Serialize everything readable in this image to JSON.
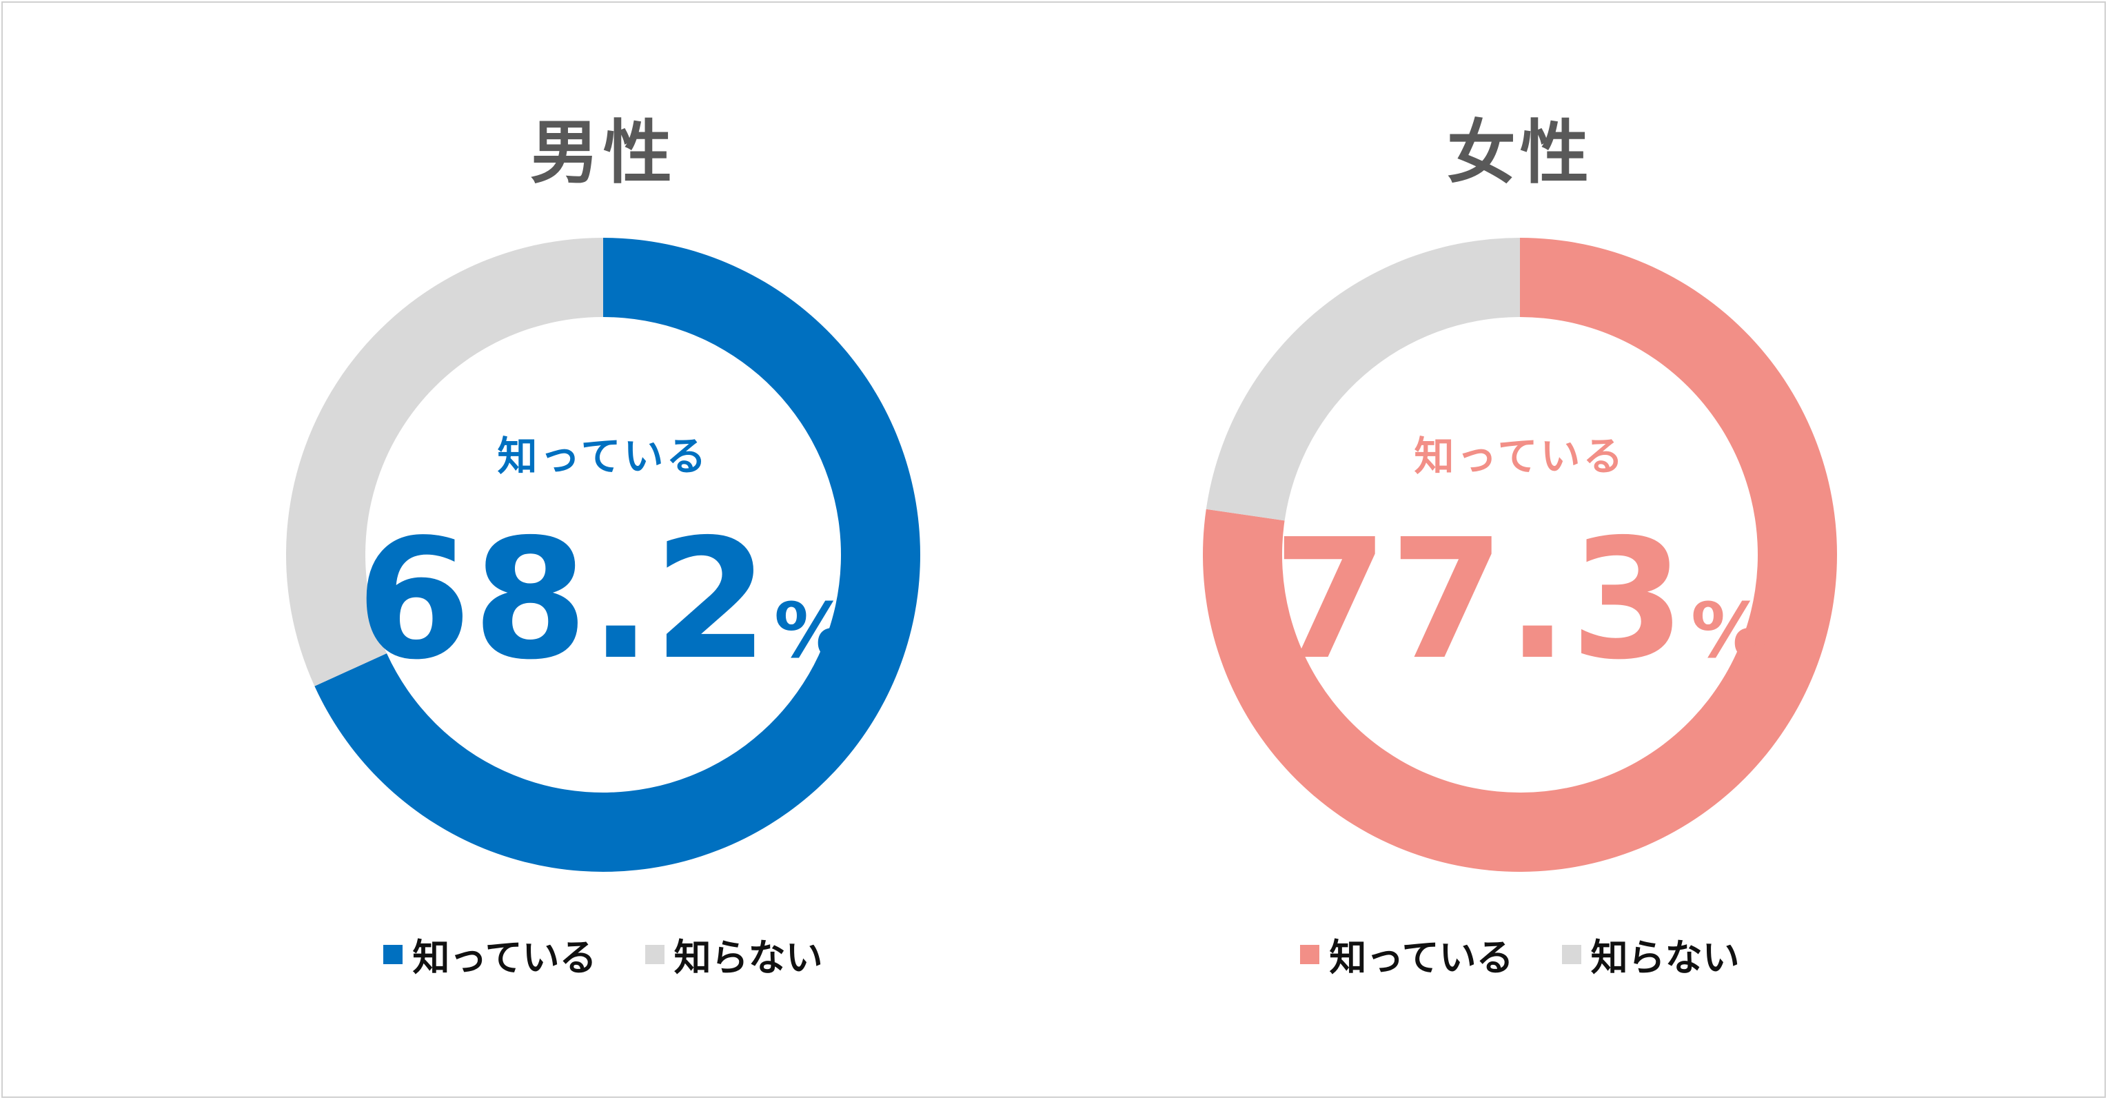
{
  "chart_data": [
    {
      "type": "pie",
      "title": "男性",
      "categories": [
        "知っている",
        "知らない"
      ],
      "values": [
        68.2,
        31.8
      ],
      "colors": [
        "#0070c0",
        "#d9d9d9"
      ],
      "center_label": "知っている",
      "center_value": "68.2",
      "center_unit": "%",
      "legend": [
        "知っている",
        "知らない"
      ],
      "legend_position": "bottom"
    },
    {
      "type": "pie",
      "title": "女性",
      "categories": [
        "知っている",
        "知らない"
      ],
      "values": [
        77.3,
        22.7
      ],
      "colors": [
        "#f28f87",
        "#d9d9d9"
      ],
      "center_label": "知っている",
      "center_value": "77.3",
      "center_unit": "%",
      "legend": [
        "知っている",
        "知らない"
      ],
      "legend_position": "bottom"
    }
  ]
}
